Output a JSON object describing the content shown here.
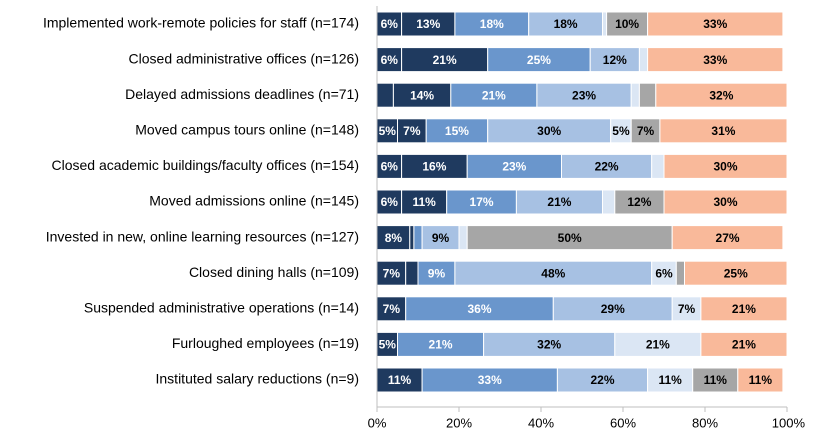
{
  "chart_data": {
    "type": "bar",
    "orientation": "horizontal",
    "stacked": true,
    "percent_scale": true,
    "xlim": [
      0,
      100
    ],
    "x_ticks": [
      "0%",
      "20%",
      "40%",
      "60%",
      "80%",
      "100%"
    ],
    "grid": false,
    "legend": "none",
    "categories": [
      "Implemented work-remote policies for staff (n=174)",
      "Closed administrative offices (n=126)",
      "Delayed admissions deadlines (n=71)",
      "Moved campus tours online (n=148)",
      "Closed academic buildings/faculty offices (n=154)",
      "Moved admissions online (n=145)",
      "Invested in new, online learning resources (n=127)",
      "Closed dining halls (n=109)",
      "Suspended administrative operations (n=14)",
      "Furloughed employees (n=19)",
      "Instituted salary reductions (n=9)"
    ],
    "segment_colors": [
      "#1f3a5f",
      "#6a96cc",
      "#a7c1e3",
      "#dbe6f4",
      "#a6a6a6",
      "#f9b99a"
    ],
    "segment_text_colors": [
      "#ffffff",
      "#ffffff",
      "#000000",
      "#000000",
      "#000000",
      "#000000"
    ],
    "rows": [
      {
        "values": [
          6,
          13,
          18,
          18,
          1,
          10,
          33
        ],
        "colors": [
          0,
          0,
          1,
          2,
          3,
          4,
          5
        ],
        "labels": [
          "6%",
          "13%",
          "18%",
          "18%",
          "",
          "10%",
          "33%"
        ]
      },
      {
        "values": [
          6,
          21,
          25,
          12,
          2,
          33
        ],
        "colors": [
          0,
          0,
          1,
          2,
          3,
          5
        ],
        "labels": [
          "6%",
          "21%",
          "25%",
          "12%",
          "",
          "33%"
        ]
      },
      {
        "values": [
          4,
          14,
          21,
          23,
          2,
          4,
          32
        ],
        "colors": [
          0,
          0,
          1,
          2,
          3,
          4,
          5
        ],
        "labels": [
          "",
          "14%",
          "21%",
          "23%",
          "",
          "",
          "32%"
        ]
      },
      {
        "values": [
          5,
          7,
          15,
          30,
          5,
          7,
          31
        ],
        "colors": [
          0,
          0,
          1,
          2,
          3,
          4,
          5
        ],
        "labels": [
          "5%",
          "7%",
          "15%",
          "30%",
          "5%",
          "7%",
          "31%"
        ]
      },
      {
        "values": [
          6,
          16,
          23,
          22,
          3,
          30
        ],
        "colors": [
          0,
          0,
          1,
          2,
          3,
          5
        ],
        "labels": [
          "6%",
          "16%",
          "23%",
          "22%",
          "",
          "30%"
        ]
      },
      {
        "values": [
          6,
          11,
          17,
          21,
          3,
          12,
          30
        ],
        "colors": [
          0,
          0,
          1,
          2,
          3,
          4,
          5
        ],
        "labels": [
          "6%",
          "11%",
          "17%",
          "21%",
          "",
          "12%",
          "30%"
        ]
      },
      {
        "values": [
          8,
          1,
          2,
          9,
          2,
          50,
          27
        ],
        "colors": [
          0,
          0,
          1,
          2,
          3,
          4,
          5
        ],
        "labels": [
          "8%",
          "",
          "",
          "9%",
          "",
          "50%",
          "27%"
        ]
      },
      {
        "values": [
          7,
          3,
          9,
          48,
          6,
          2,
          25
        ],
        "colors": [
          0,
          0,
          1,
          2,
          3,
          4,
          5
        ],
        "labels": [
          "7%",
          "",
          "9%",
          "48%",
          "6%",
          "",
          "25%"
        ]
      },
      {
        "values": [
          7,
          36,
          29,
          7,
          21
        ],
        "colors": [
          0,
          1,
          2,
          3,
          5
        ],
        "labels": [
          "7%",
          "36%",
          "29%",
          "7%",
          "21%"
        ]
      },
      {
        "values": [
          5,
          21,
          32,
          21,
          21
        ],
        "colors": [
          0,
          1,
          2,
          3,
          5
        ],
        "labels": [
          "5%",
          "21%",
          "32%",
          "21%",
          "21%"
        ]
      },
      {
        "values": [
          11,
          33,
          22,
          11,
          11,
          11
        ],
        "colors": [
          0,
          1,
          2,
          3,
          4,
          5
        ],
        "labels": [
          "11%",
          "33%",
          "22%",
          "11%",
          "11%",
          "11%"
        ]
      }
    ]
  }
}
